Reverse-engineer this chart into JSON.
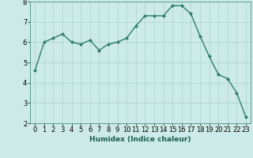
{
  "x": [
    0,
    1,
    2,
    3,
    4,
    5,
    6,
    7,
    8,
    9,
    10,
    11,
    12,
    13,
    14,
    15,
    16,
    17,
    18,
    19,
    20,
    21,
    22,
    23
  ],
  "y": [
    4.6,
    6.0,
    6.2,
    6.4,
    6.0,
    5.9,
    6.1,
    5.6,
    5.9,
    6.0,
    6.2,
    6.8,
    7.3,
    7.3,
    7.3,
    7.8,
    7.8,
    7.4,
    6.3,
    5.3,
    4.4,
    4.2,
    3.5,
    2.3
  ],
  "line_color": "#2e7d6e",
  "marker": "D",
  "markersize": 2.0,
  "linewidth": 1.0,
  "bg_color": "#cceae7",
  "grid_color": "#b0d8d4",
  "xlabel": "Humidex (Indice chaleur)",
  "ylim": [
    2,
    8
  ],
  "xlim": [
    -0.5,
    23.5
  ],
  "yticks": [
    2,
    3,
    4,
    5,
    6,
    7,
    8
  ],
  "xticks": [
    0,
    1,
    2,
    3,
    4,
    5,
    6,
    7,
    8,
    9,
    10,
    11,
    12,
    13,
    14,
    15,
    16,
    17,
    18,
    19,
    20,
    21,
    22,
    23
  ],
  "xlabel_fontsize": 6.5,
  "tick_fontsize": 6.0
}
